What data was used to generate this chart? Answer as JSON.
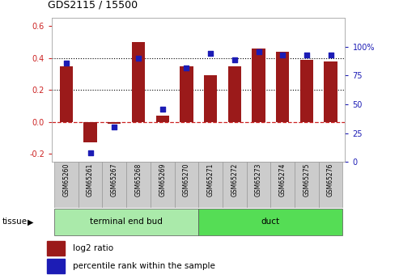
{
  "title": "GDS2115 / 15500",
  "samples": [
    "GSM65260",
    "GSM65261",
    "GSM65267",
    "GSM65268",
    "GSM65269",
    "GSM65270",
    "GSM65271",
    "GSM65272",
    "GSM65273",
    "GSM65274",
    "GSM65275",
    "GSM65276"
  ],
  "log2_ratio": [
    0.35,
    -0.13,
    -0.01,
    0.5,
    0.04,
    0.35,
    0.29,
    0.35,
    0.46,
    0.44,
    0.39,
    0.38
  ],
  "percentile": [
    0.86,
    0.08,
    0.3,
    0.9,
    0.46,
    0.82,
    0.94,
    0.89,
    0.96,
    0.93,
    0.93,
    0.93
  ],
  "bar_color": "#9B1A1A",
  "dot_color": "#1C1CB5",
  "ylim_left": [
    -0.25,
    0.65
  ],
  "ylim_right": [
    0.0,
    1.25
  ],
  "yticks_left": [
    -0.2,
    0.0,
    0.2,
    0.4,
    0.6
  ],
  "yticks_right": [
    0.0,
    0.25,
    0.5,
    0.75,
    1.0
  ],
  "yticklabels_right": [
    "0",
    "25",
    "50",
    "75",
    "100%"
  ],
  "group1_label": "terminal end bud",
  "group2_label": "duct",
  "group1_color": "#AAEAAA",
  "group2_color": "#55DD55",
  "group1_count": 6,
  "group2_count": 6,
  "tissue_label": "tissue",
  "legend_bar_label": "log2 ratio",
  "legend_dot_label": "percentile rank within the sample",
  "hline_color": "#CC2222",
  "grid_color": "#000000",
  "bar_width": 0.55,
  "cell_color": "#CCCCCC",
  "cell_edge_color": "#999999"
}
